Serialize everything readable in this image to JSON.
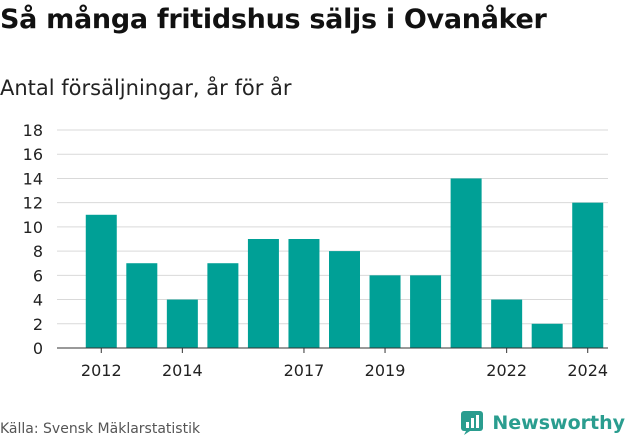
{
  "title": "Så många fritidshus säljs i Ovanåker",
  "subtitle": "Antal försäljningar, år för år",
  "source": "Källa: Svensk Mäklarstatistik",
  "brand": "Newsworthy",
  "colors": {
    "bar": "#00a096",
    "grid": "#d9d9d9",
    "text": "#222222",
    "brand": "#2a9d8f"
  },
  "chart_data": {
    "type": "bar",
    "categories": [
      "2012",
      "2013",
      "2014",
      "2015",
      "2016",
      "2017",
      "2018",
      "2019",
      "2020",
      "2021",
      "2022",
      "2023",
      "2024"
    ],
    "values": [
      11,
      7,
      4,
      7,
      9,
      9,
      8,
      6,
      6,
      14,
      4,
      2,
      12
    ],
    "x_tick_labels": [
      "2012",
      "2014",
      "2017",
      "2019",
      "2022",
      "2024"
    ],
    "y_ticks": [
      0,
      2,
      4,
      6,
      8,
      10,
      12,
      14,
      16,
      18
    ],
    "ylim": [
      0,
      18
    ],
    "grid": true
  }
}
